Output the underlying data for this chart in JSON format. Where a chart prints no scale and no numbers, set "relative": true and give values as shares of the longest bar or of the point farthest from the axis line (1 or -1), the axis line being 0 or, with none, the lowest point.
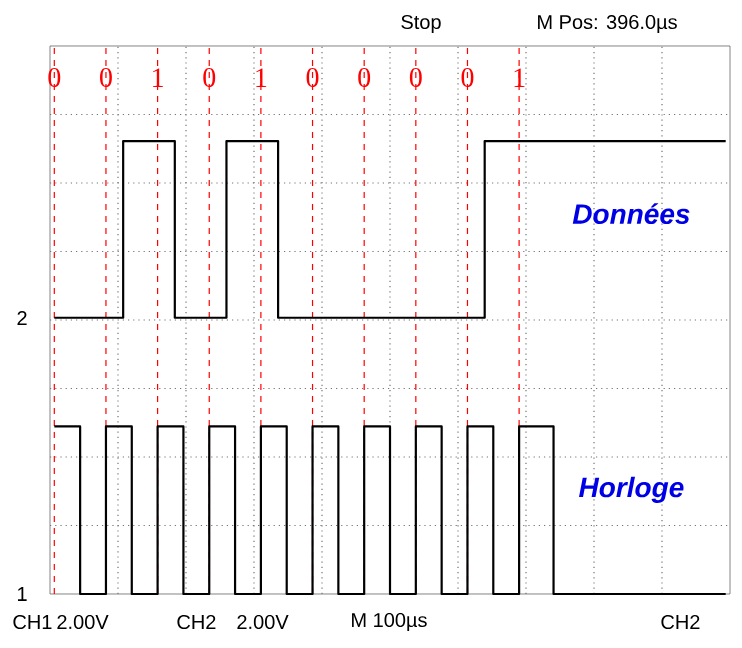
{
  "chart_data": {
    "type": "step",
    "relative": true,
    "grid": true,
    "marker": "none",
    "tick_labels": "x",
    "categories": [
      "0",
      null,
      null,
      null,
      null,
      null,
      "0",
      null,
      null,
      null,
      null,
      null,
      "1",
      null,
      null,
      null,
      null,
      null,
      "0",
      null,
      null,
      null,
      null,
      null,
      "1",
      null,
      null,
      null,
      null,
      null,
      "0",
      null,
      null,
      null,
      null,
      null,
      "0",
      null,
      null,
      null,
      null,
      null,
      "0",
      null,
      null,
      null,
      null,
      null,
      "0",
      null,
      null,
      null,
      null,
      null,
      "1",
      null,
      null,
      null,
      null,
      null,
      null,
      null,
      null,
      null,
      null,
      null,
      null,
      null,
      null,
      null,
      null,
      null,
      null,
      null,
      null,
      null,
      null,
      null,
      null
    ],
    "series": [
      {
        "name": "Données",
        "color": "#000000",
        "values": [
          0.61,
          0.61,
          0.61,
          0.61,
          0.61,
          0.61,
          0.61,
          0.61,
          1,
          1,
          1,
          1,
          1,
          1,
          0.61,
          0.61,
          0.61,
          0.61,
          0.61,
          0.61,
          1,
          1,
          1,
          1,
          1,
          1,
          0.61,
          0.61,
          0.61,
          0.61,
          0.61,
          0.61,
          0.61,
          0.61,
          0.61,
          0.61,
          0.61,
          0.61,
          0.61,
          0.61,
          0.61,
          0.61,
          0.61,
          0.61,
          0.61,
          0.61,
          0.61,
          0.61,
          0.61,
          0.61,
          1,
          1,
          1,
          1,
          1,
          1,
          1,
          1,
          1,
          1,
          1,
          1,
          1,
          1,
          1,
          1,
          1,
          1,
          1,
          1,
          1,
          1,
          1,
          1,
          1,
          1,
          1,
          1,
          1
        ]
      },
      {
        "name": "Horloge",
        "color": "#000000",
        "values": [
          0.37,
          0.37,
          0.37,
          0,
          0,
          0,
          0.37,
          0.37,
          0.37,
          0,
          0,
          0,
          0.37,
          0.37,
          0.37,
          0,
          0,
          0,
          0.37,
          0.37,
          0.37,
          0,
          0,
          0,
          0.37,
          0.37,
          0.37,
          0,
          0,
          0,
          0.37,
          0.37,
          0.37,
          0,
          0,
          0,
          0.37,
          0.37,
          0.37,
          0,
          0,
          0,
          0.37,
          0.37,
          0.37,
          0,
          0,
          0,
          0.37,
          0.37,
          0.37,
          0,
          0,
          0,
          0.37,
          0.37,
          0.37,
          0.37,
          0,
          0,
          0,
          0,
          0,
          0,
          0,
          0,
          0,
          0,
          0,
          0,
          0,
          0,
          0,
          0,
          0,
          0,
          0,
          0,
          0
        ]
      }
    ],
    "annotations": [
      "Stop",
      "M Pos: 396.0µs",
      "CH1",
      "2.00V",
      "CH2",
      "2.00V",
      "M 100µs",
      "CH2",
      "2",
      "1"
    ]
  }
}
